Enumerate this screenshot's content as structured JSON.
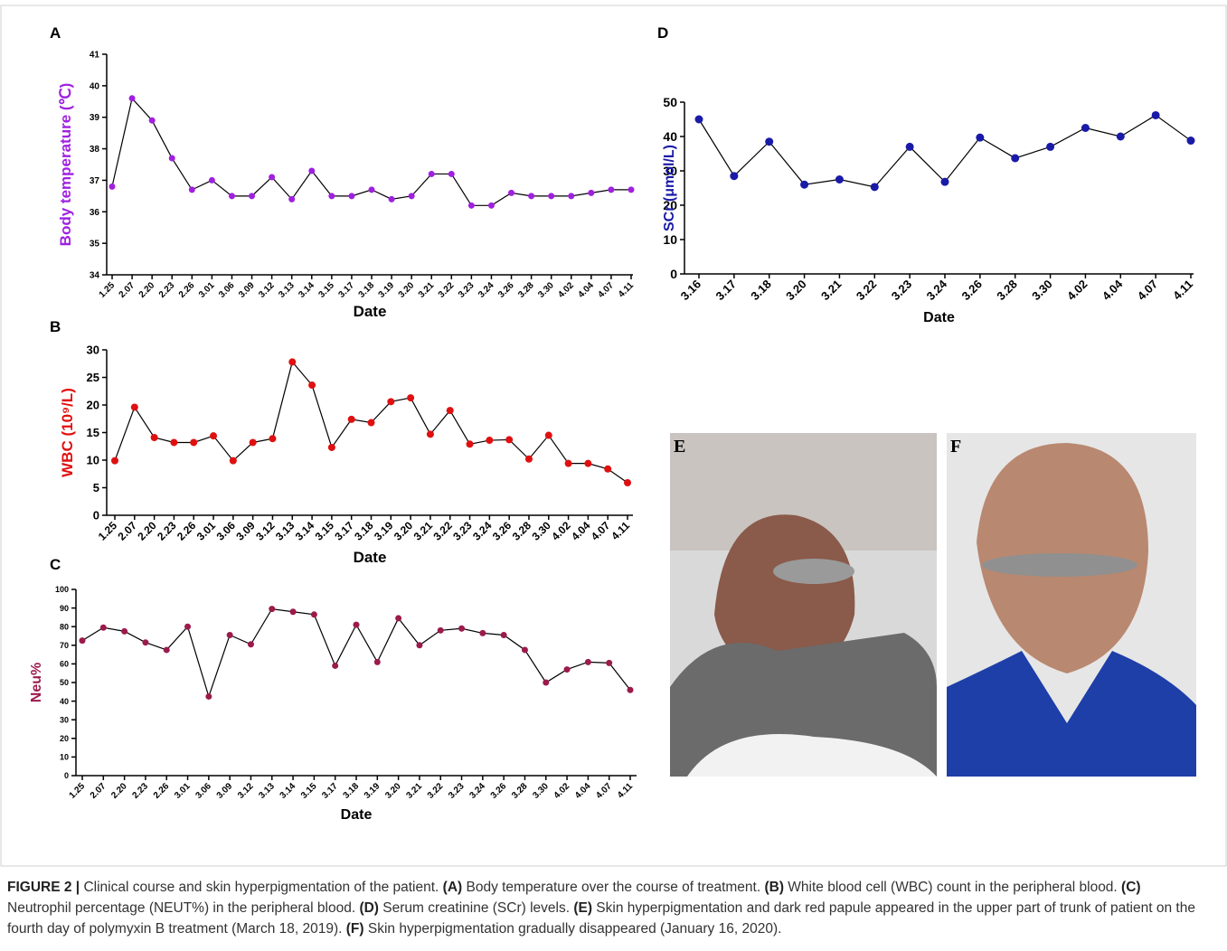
{
  "chart_data": [
    {
      "type": "line",
      "panel_label": "A",
      "ylabel": "Body temperature (℃)",
      "xlabel": "Date",
      "categories": [
        "1.25",
        "2.07",
        "2.20",
        "2.23",
        "2.26",
        "3.01",
        "3.06",
        "3.09",
        "3.12",
        "3.13",
        "3.14",
        "3.15",
        "3.17",
        "3.18",
        "3.19",
        "3.20",
        "3.21",
        "3.22",
        "3.23",
        "3.24",
        "3.26",
        "3.28",
        "3.30",
        "4.02",
        "4.04",
        "4.07",
        "4.11"
      ],
      "values": [
        36.8,
        39.6,
        38.9,
        37.7,
        36.7,
        37.0,
        36.5,
        36.5,
        37.1,
        36.4,
        37.3,
        36.5,
        36.5,
        36.7,
        36.4,
        36.5,
        37.2,
        37.2,
        36.2,
        36.2,
        36.6,
        36.5,
        36.5,
        36.5,
        36.6,
        36.7,
        36.7
      ],
      "color": "#a020e0",
      "line_color": "#000000",
      "ylim": [
        34,
        41
      ],
      "yticks": [
        34,
        35,
        36,
        37,
        38,
        39,
        40,
        41
      ]
    },
    {
      "type": "line",
      "panel_label": "B",
      "ylabel": "WBC (10⁹/L)",
      "xlabel": "Date",
      "categories": [
        "1.25",
        "2.07",
        "2.20",
        "2.23",
        "2.26",
        "3.01",
        "3.06",
        "3.09",
        "3.12",
        "3.13",
        "3.14",
        "3.15",
        "3.17",
        "3.18",
        "3.19",
        "3.20",
        "3.21",
        "3.22",
        "3.23",
        "3.24",
        "3.26",
        "3.28",
        "3.30",
        "4.02",
        "4.04",
        "4.07",
        "4.11"
      ],
      "values": [
        9.9,
        19.6,
        14.1,
        13.2,
        13.2,
        14.4,
        9.9,
        13.2,
        13.9,
        27.8,
        23.6,
        12.3,
        17.4,
        16.8,
        20.6,
        21.3,
        14.7,
        19.0,
        12.9,
        13.6,
        13.7,
        10.2,
        14.5,
        9.4,
        9.4,
        8.4,
        5.9
      ],
      "color": "#e01010",
      "line_color": "#000000",
      "ylim": [
        0,
        30
      ],
      "yticks": [
        0,
        5,
        10,
        15,
        20,
        25,
        30
      ]
    },
    {
      "type": "line",
      "panel_label": "C",
      "ylabel": "Neu%",
      "xlabel": "Date",
      "categories": [
        "1.25",
        "2.07",
        "2.20",
        "2.23",
        "2.26",
        "3.01",
        "3.06",
        "3.09",
        "3.12",
        "3.13",
        "3.14",
        "3.15",
        "3.17",
        "3.18",
        "3.19",
        "3.20",
        "3.21",
        "3.22",
        "3.23",
        "3.24",
        "3.26",
        "3.28",
        "3.30",
        "4.02",
        "4.04",
        "4.07",
        "4.11"
      ],
      "values": [
        72.5,
        79.5,
        77.5,
        71.5,
        67.5,
        80,
        42.5,
        75.5,
        70.5,
        89.5,
        88,
        86.5,
        59,
        81,
        61,
        84.5,
        70,
        78,
        79,
        76.5,
        75.5,
        67.5,
        50,
        57,
        61,
        60.5,
        46
      ],
      "color": "#9b1b4b",
      "line_color": "#000000",
      "ylim": [
        0,
        100
      ],
      "yticks": [
        0,
        10,
        20,
        30,
        40,
        50,
        60,
        70,
        80,
        90,
        100
      ]
    },
    {
      "type": "line",
      "panel_label": "D",
      "ylabel": "SCr (μmol/L)",
      "xlabel": "Date",
      "categories": [
        "3.16",
        "3.17",
        "3.18",
        "3.20",
        "3.21",
        "3.22",
        "3.23",
        "3.24",
        "3.26",
        "3.28",
        "3.30",
        "4.02",
        "4.04",
        "4.07",
        "4.11"
      ],
      "values": [
        45,
        28.5,
        38.5,
        26,
        27.5,
        25.3,
        37,
        26.8,
        39.7,
        33.7,
        37,
        42.5,
        40,
        46.2,
        38.8
      ],
      "color": "#1a1aa8",
      "line_color": "#000000",
      "ylim": [
        0,
        50
      ],
      "yticks": [
        0,
        10,
        20,
        30,
        40,
        50
      ]
    }
  ],
  "photos": [
    {
      "label": "E"
    },
    {
      "label": "F"
    }
  ],
  "caption": [
    {
      "text": "FIGURE 2 |",
      "bold": true
    },
    {
      "text": " Clinical course and skin hyperpigmentation of the patient. ",
      "bold": false
    },
    {
      "text": "(A)",
      "bold": true
    },
    {
      "text": " Body temperature over the course of treatment. ",
      "bold": false
    },
    {
      "text": "(B)",
      "bold": true
    },
    {
      "text": " White blood cell (WBC) count in the peripheral blood. ",
      "bold": false
    },
    {
      "text": "(C)",
      "bold": true
    },
    {
      "text": " Neutrophil percentage (NEUT%) in the peripheral blood. ",
      "bold": false
    },
    {
      "text": "(D)",
      "bold": true
    },
    {
      "text": " Serum creatinine (SCr) levels. ",
      "bold": false
    },
    {
      "text": "(E)",
      "bold": true
    },
    {
      "text": " Skin hyperpigmentation and dark red papule appeared in the upper part of trunk of patient on the fourth day of polymyxin B treatment (March 18, 2019). ",
      "bold": false
    },
    {
      "text": "(F)",
      "bold": true
    },
    {
      "text": " Skin hyperpigmentation gradually disappeared (January 16, 2020).",
      "bold": false
    }
  ]
}
